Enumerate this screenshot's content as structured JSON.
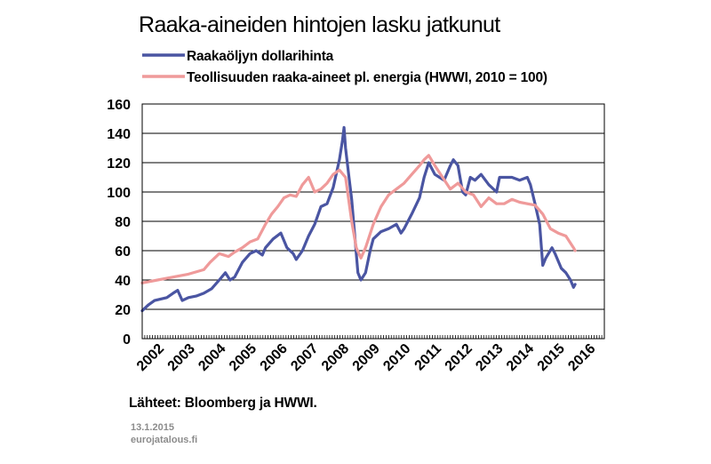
{
  "chart_data": {
    "type": "line",
    "title": "Raaka-aineiden hintojen lasku jatkunut",
    "xlabel": "",
    "ylabel": "",
    "xlim": [
      2002.0,
      2017.0
    ],
    "ylim": [
      0,
      160
    ],
    "y_ticks": [
      "0",
      "20",
      "40",
      "60",
      "80",
      "100",
      "120",
      "140",
      "160"
    ],
    "x_ticks": [
      "2002",
      "2003",
      "2004",
      "2005",
      "2006",
      "2007",
      "2008",
      "2009",
      "2010",
      "2011",
      "2012",
      "2013",
      "2014",
      "2015",
      "2016"
    ],
    "grid": true,
    "legend_position": "top-left",
    "series": [
      {
        "name": "Raakaöljyn dollarihinta",
        "color": "#4a55a2",
        "x": [
          2002.0,
          2002.2,
          2002.4,
          2002.6,
          2002.8,
          2003.0,
          2003.15,
          2003.3,
          2003.5,
          2003.75,
          2004.0,
          2004.25,
          2004.5,
          2004.7,
          2004.85,
          2005.0,
          2005.25,
          2005.5,
          2005.7,
          2005.9,
          2006.0,
          2006.25,
          2006.5,
          2006.7,
          2006.9,
          2007.0,
          2007.2,
          2007.4,
          2007.6,
          2007.8,
          2008.0,
          2008.2,
          2008.4,
          2008.5,
          2008.55,
          2008.6,
          2008.7,
          2008.8,
          2008.9,
          2009.0,
          2009.1,
          2009.25,
          2009.4,
          2009.5,
          2009.75,
          2010.0,
          2010.25,
          2010.4,
          2010.5,
          2010.75,
          2011.0,
          2011.15,
          2011.3,
          2011.5,
          2011.65,
          2011.8,
          2012.0,
          2012.1,
          2012.25,
          2012.4,
          2012.5,
          2012.65,
          2012.8,
          2013.0,
          2013.25,
          2013.5,
          2013.6,
          2013.75,
          2014.0,
          2014.25,
          2014.5,
          2014.6,
          2014.75,
          2014.9,
          2015.0,
          2015.1,
          2015.3,
          2015.4,
          2015.6,
          2015.75,
          2015.9,
          2016.0,
          2016.05
        ],
        "values": [
          19,
          23,
          26,
          27,
          28,
          31,
          33,
          26,
          28,
          29,
          31,
          34,
          40,
          45,
          40,
          42,
          52,
          58,
          60,
          57,
          62,
          68,
          72,
          62,
          58,
          54,
          60,
          70,
          78,
          90,
          92,
          103,
          122,
          135,
          144,
          130,
          112,
          95,
          70,
          45,
          40,
          45,
          60,
          68,
          73,
          75,
          78,
          72,
          75,
          85,
          96,
          110,
          120,
          112,
          110,
          108,
          118,
          122,
          118,
          100,
          98,
          110,
          108,
          112,
          105,
          100,
          110,
          110,
          110,
          108,
          110,
          105,
          92,
          78,
          50,
          55,
          62,
          58,
          48,
          45,
          40,
          35,
          37
        ]
      },
      {
        "name": "Teollisuuden raaka-aineet pl. energia (HWWI, 2010 = 100)",
        "color": "#ef9a9a",
        "x": [
          2002.0,
          2002.5,
          2003.0,
          2003.5,
          2004.0,
          2004.2,
          2004.5,
          2004.8,
          2005.0,
          2005.25,
          2005.5,
          2005.75,
          2006.0,
          2006.2,
          2006.4,
          2006.6,
          2006.8,
          2007.0,
          2007.2,
          2007.4,
          2007.6,
          2007.8,
          2008.0,
          2008.2,
          2008.4,
          2008.6,
          2008.8,
          2008.95,
          2009.1,
          2009.25,
          2009.5,
          2009.75,
          2010.0,
          2010.25,
          2010.5,
          2010.75,
          2011.0,
          2011.15,
          2011.3,
          2011.5,
          2011.75,
          2012.0,
          2012.25,
          2012.5,
          2012.75,
          2013.0,
          2013.25,
          2013.5,
          2013.75,
          2014.0,
          2014.25,
          2014.5,
          2014.75,
          2015.0,
          2015.25,
          2015.5,
          2015.75,
          2016.0,
          2016.05
        ],
        "values": [
          38,
          40,
          42,
          44,
          47,
          52,
          58,
          56,
          59,
          62,
          66,
          68,
          78,
          85,
          90,
          96,
          98,
          97,
          105,
          110,
          100,
          102,
          106,
          112,
          115,
          110,
          80,
          62,
          55,
          62,
          78,
          90,
          98,
          102,
          106,
          112,
          118,
          122,
          125,
          118,
          110,
          102,
          106,
          100,
          98,
          90,
          96,
          92,
          92,
          95,
          93,
          92,
          91,
          85,
          75,
          72,
          70,
          62,
          60
        ]
      }
    ]
  },
  "source_text": "Lähteet: Bloomberg ja HWWI.",
  "date_text": "13.1.2015",
  "site_text": "eurojatalous.fi"
}
